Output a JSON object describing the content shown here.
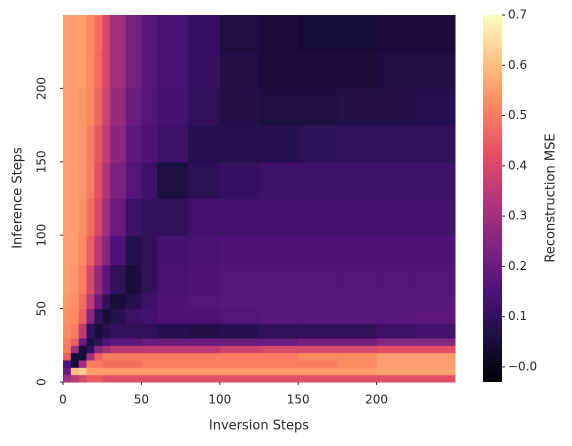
{
  "chart_data": {
    "type": "heatmap",
    "xlabel": "Inversion Steps",
    "ylabel": "Inference Steps",
    "colorbar_label": "Reconstruction MSE",
    "colormap": "magma",
    "x_edges": [
      0,
      5,
      10,
      15,
      20,
      25,
      30,
      40,
      50,
      60,
      80,
      100,
      125,
      150,
      175,
      200,
      225,
      250
    ],
    "y_edges": [
      0,
      5,
      10,
      15,
      20,
      25,
      30,
      40,
      50,
      60,
      80,
      100,
      125,
      150,
      175,
      200,
      225,
      250
    ],
    "values": [
      [
        0.3,
        0.35,
        0.4,
        0.45,
        0.45,
        0.42,
        0.42,
        0.42,
        0.42,
        0.42,
        0.42,
        0.42,
        0.42,
        0.42,
        0.42,
        0.42,
        0.42
      ],
      [
        0.2,
        0.6,
        0.62,
        0.55,
        0.55,
        0.55,
        0.55,
        0.55,
        0.55,
        0.55,
        0.55,
        0.55,
        0.55,
        0.55,
        0.55,
        0.56,
        0.56
      ],
      [
        0.15,
        0.05,
        0.3,
        0.5,
        0.5,
        0.48,
        0.48,
        0.48,
        0.5,
        0.5,
        0.5,
        0.5,
        0.5,
        0.5,
        0.52,
        0.55,
        0.55
      ],
      [
        0.45,
        0.05,
        0.05,
        0.3,
        0.45,
        0.5,
        0.5,
        0.5,
        0.5,
        0.5,
        0.5,
        0.5,
        0.5,
        0.52,
        0.52,
        0.55,
        0.55
      ],
      [
        0.5,
        0.3,
        0.05,
        0.1,
        0.25,
        0.3,
        0.35,
        0.35,
        0.35,
        0.35,
        0.35,
        0.38,
        0.4,
        0.4,
        0.4,
        0.42,
        0.42
      ],
      [
        0.5,
        0.45,
        0.2,
        0.05,
        0.1,
        0.15,
        0.18,
        0.18,
        0.2,
        0.2,
        0.2,
        0.2,
        0.2,
        0.22,
        0.22,
        0.25,
        0.25
      ],
      [
        0.52,
        0.5,
        0.35,
        0.1,
        0.05,
        0.08,
        0.1,
        0.1,
        0.1,
        0.08,
        0.07,
        0.08,
        0.1,
        0.1,
        0.1,
        0.12,
        0.13
      ],
      [
        0.53,
        0.52,
        0.45,
        0.25,
        0.1,
        0.05,
        0.08,
        0.12,
        0.13,
        0.15,
        0.15,
        0.16,
        0.17,
        0.17,
        0.17,
        0.17,
        0.18
      ],
      [
        0.54,
        0.53,
        0.48,
        0.35,
        0.2,
        0.1,
        0.05,
        0.08,
        0.12,
        0.15,
        0.16,
        0.17,
        0.17,
        0.17,
        0.17,
        0.17,
        0.17
      ],
      [
        0.55,
        0.54,
        0.5,
        0.4,
        0.28,
        0.18,
        0.1,
        0.05,
        0.1,
        0.14,
        0.15,
        0.16,
        0.16,
        0.16,
        0.16,
        0.16,
        0.16
      ],
      [
        0.55,
        0.55,
        0.52,
        0.45,
        0.35,
        0.25,
        0.15,
        0.08,
        0.1,
        0.13,
        0.14,
        0.15,
        0.15,
        0.15,
        0.15,
        0.15,
        0.15
      ],
      [
        0.55,
        0.55,
        0.53,
        0.48,
        0.4,
        0.3,
        0.2,
        0.12,
        0.1,
        0.1,
        0.13,
        0.13,
        0.13,
        0.13,
        0.13,
        0.13,
        0.13
      ],
      [
        0.55,
        0.55,
        0.54,
        0.5,
        0.42,
        0.33,
        0.23,
        0.16,
        0.12,
        0.06,
        0.09,
        0.11,
        0.12,
        0.12,
        0.12,
        0.12,
        0.12
      ],
      [
        0.55,
        0.55,
        0.54,
        0.5,
        0.44,
        0.36,
        0.26,
        0.18,
        0.15,
        0.12,
        0.08,
        0.08,
        0.08,
        0.09,
        0.1,
        0.1,
        0.1
      ],
      [
        0.55,
        0.55,
        0.54,
        0.52,
        0.46,
        0.38,
        0.28,
        0.2,
        0.16,
        0.13,
        0.1,
        0.07,
        0.06,
        0.06,
        0.07,
        0.07,
        0.08
      ],
      [
        0.55,
        0.55,
        0.55,
        0.52,
        0.47,
        0.4,
        0.3,
        0.22,
        0.17,
        0.14,
        0.11,
        0.07,
        0.05,
        0.05,
        0.05,
        0.06,
        0.06
      ],
      [
        0.55,
        0.55,
        0.55,
        0.52,
        0.48,
        0.4,
        0.3,
        0.22,
        0.17,
        0.14,
        0.11,
        0.06,
        0.05,
        0.04,
        0.04,
        0.05,
        0.05
      ]
    ],
    "xlim": [
      0,
      250
    ],
    "ylim": [
      0,
      250
    ],
    "xticks": [
      0,
      50,
      100,
      150,
      200
    ],
    "yticks": [
      0,
      50,
      100,
      150,
      200
    ],
    "clim": [
      -0.03,
      0.7
    ],
    "cticks": [
      {
        "value": 0,
        "label": "−0.0"
      },
      0.1,
      0.2,
      0.3,
      0.4,
      0.5,
      0.6,
      0.7
    ]
  }
}
